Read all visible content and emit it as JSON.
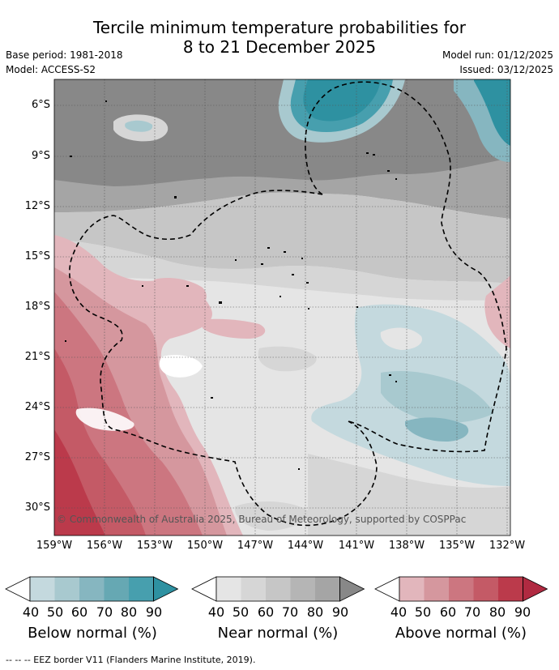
{
  "title": {
    "line1": "Tercile minimum temperature probabilities for",
    "line2": "8 to 21 December 2025"
  },
  "meta": {
    "base_period": "Base period: 1981-2018",
    "model": "Model: ACCESS-S2",
    "model_run": "Model run: 01/12/2025",
    "issued": "Issued: 03/12/2025"
  },
  "map": {
    "lat_labels": [
      "6°S",
      "9°S",
      "12°S",
      "15°S",
      "18°S",
      "21°S",
      "24°S",
      "27°S",
      "30°S"
    ],
    "lon_labels": [
      "159°W",
      "156°W",
      "153°W",
      "150°W",
      "147°W",
      "144°W",
      "141°W",
      "138°W",
      "135°W",
      "132°W"
    ],
    "credit": "© Commonwealth of Australia 2025, Bureau of Meteorology, supported by COSPPac"
  },
  "legend": {
    "ticks": [
      "40",
      "50",
      "60",
      "70",
      "80",
      "90"
    ],
    "bars": [
      {
        "id": "below",
        "label": "Below normal (%)",
        "colors": [
          "#c4d9de",
          "#a8c9cf",
          "#86b6c0",
          "#66a8b3",
          "#479fae",
          "#2e91a1"
        ]
      },
      {
        "id": "near",
        "label": "Near normal (%)",
        "colors": [
          "#e5e5e5",
          "#d6d6d6",
          "#c6c6c6",
          "#b5b5b5",
          "#a5a5a5",
          "#888888"
        ]
      },
      {
        "id": "above",
        "label": "Above normal (%)",
        "colors": [
          "#e2b6bc",
          "#d5979e",
          "#cc7680",
          "#c45a66",
          "#bb3a4b",
          "#b02a41"
        ]
      }
    ]
  },
  "footnote": "--  --  -- EEZ border V11 (Flanders Marine Institute, 2019)."
}
